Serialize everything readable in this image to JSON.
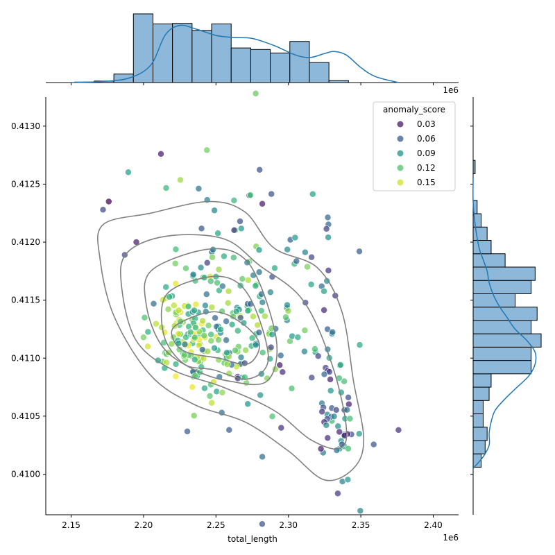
{
  "chart_data": {
    "type": "scatter",
    "title": "",
    "xlabel": "total_length",
    "ylabel": "",
    "x_offset_label": "1e6",
    "x_marginal_offset_label": "1e6",
    "xlim": [
      2.1325,
      2.4175
    ],
    "ylim": [
      0.40965,
      0.41325
    ],
    "x_ticks": [
      2.15,
      2.2,
      2.25,
      2.3,
      2.35,
      2.4
    ],
    "x_tick_labels": [
      "2.15",
      "2.20",
      "2.25",
      "2.30",
      "2.35",
      "2.40"
    ],
    "y_ticks": [
      0.41,
      0.4105,
      0.411,
      0.4115,
      0.412,
      0.4125,
      0.413
    ],
    "y_tick_labels": [
      "0.4100",
      "0.4105",
      "0.4110",
      "0.4115",
      "0.4120",
      "0.4125",
      "0.4130"
    ],
    "grid": false,
    "legend": {
      "title": "anomaly_score",
      "placement": "top-right",
      "entries": [
        {
          "label": "0.03",
          "color": "#46327e"
        },
        {
          "label": "0.06",
          "color": "#277f8e"
        },
        {
          "label": "0.09",
          "color": "#1fa187"
        },
        {
          "label": "0.12",
          "color": "#6ece58"
        },
        {
          "label": "0.15",
          "color": "#e1e22c"
        }
      ]
    },
    "colormap": "viridis",
    "marginal_color": "#1f77b4",
    "kde_contour_color": "#808080",
    "points_outlier": [
      {
        "x": 2.212,
        "y": 0.41276,
        "s": 0.03
      },
      {
        "x": 2.172,
        "y": 0.41228,
        "s": 0.05
      },
      {
        "x": 2.176,
        "y": 0.41235,
        "s": 0.02
      },
      {
        "x": 2.187,
        "y": 0.41189,
        "s": 0.05
      },
      {
        "x": 2.195,
        "y": 0.412,
        "s": 0.03
      },
      {
        "x": 2.349,
        "y": 0.41192,
        "s": 0.06
      },
      {
        "x": 2.376,
        "y": 0.41038,
        "s": 0.04
      },
      {
        "x": 2.282,
        "y": 0.41233,
        "s": 0.03
      },
      {
        "x": 2.316,
        "y": 0.41187,
        "s": 0.05
      },
      {
        "x": 2.282,
        "y": 0.41015,
        "s": 0.07
      },
      {
        "x": 2.294,
        "y": 0.41094,
        "s": 0.03
      },
      {
        "x": 2.295,
        "y": 0.4104,
        "s": 0.04
      },
      {
        "x": 2.33,
        "y": 0.41057,
        "s": 0.06
      },
      {
        "x": 2.265,
        "y": 0.41084,
        "s": 0.04
      },
      {
        "x": 2.296,
        "y": 0.41088,
        "s": 0.04
      },
      {
        "x": 2.323,
        "y": 0.41162,
        "s": 0.07
      },
      {
        "x": 2.254,
        "y": 0.41053,
        "s": 0.07
      },
      {
        "x": 2.207,
        "y": 0.41147,
        "s": 0.07
      }
    ],
    "clusters": [
      {
        "cx": 2.232,
        "cy": 0.4112,
        "sx": 0.012,
        "sy": 0.00022,
        "n": 110,
        "smin": 0.1,
        "smax": 0.16
      },
      {
        "cx": 2.258,
        "cy": 0.41118,
        "sx": 0.02,
        "sy": 0.0003,
        "n": 90,
        "smin": 0.06,
        "smax": 0.15
      },
      {
        "cx": 2.283,
        "cy": 0.41128,
        "sx": 0.018,
        "sy": 0.0004,
        "n": 40,
        "smin": 0.05,
        "smax": 0.14
      },
      {
        "cx": 2.324,
        "cy": 0.41122,
        "sx": 0.008,
        "sy": 0.0006,
        "n": 30,
        "smin": 0.03,
        "smax": 0.11
      },
      {
        "cx": 2.335,
        "cy": 0.4104,
        "sx": 0.009,
        "sy": 0.0003,
        "n": 45,
        "smin": 0.03,
        "smax": 0.12
      },
      {
        "cx": 2.262,
        "cy": 0.41205,
        "sx": 0.022,
        "sy": 0.0006,
        "n": 40,
        "smin": 0.04,
        "smax": 0.14
      }
    ],
    "x_hist": {
      "bin_start": 2.1525,
      "bin_width": 0.0135,
      "counts": [
        1,
        3,
        17,
        137,
        117,
        118,
        104,
        117,
        69,
        66,
        59,
        82,
        40,
        4
      ]
    },
    "x_kde": [
      [
        2.15,
        0
      ],
      [
        2.17,
        2
      ],
      [
        2.19,
        9
      ],
      [
        2.205,
        35
      ],
      [
        2.215,
        95
      ],
      [
        2.225,
        114
      ],
      [
        2.237,
        106
      ],
      [
        2.25,
        94
      ],
      [
        2.262,
        90
      ],
      [
        2.275,
        88
      ],
      [
        2.29,
        74
      ],
      [
        2.305,
        55
      ],
      [
        2.315,
        50
      ],
      [
        2.325,
        58
      ],
      [
        2.332,
        62
      ],
      [
        2.34,
        55
      ],
      [
        2.35,
        30
      ],
      [
        2.36,
        12
      ],
      [
        2.376,
        0
      ]
    ],
    "y_hist": {
      "bin_start": 0.41006,
      "bin_width": 0.000115,
      "counts": [
        4,
        6,
        7,
        5,
        5,
        8,
        9,
        29,
        29,
        34,
        29,
        32,
        21,
        29,
        31,
        16,
        9,
        7,
        4,
        2,
        0,
        0,
        1
      ]
    },
    "y_kde": [
      [
        0.41005,
        0
      ],
      [
        0.41015,
        5
      ],
      [
        0.41025,
        8
      ],
      [
        0.41035,
        8
      ],
      [
        0.41045,
        9
      ],
      [
        0.41055,
        11
      ],
      [
        0.41065,
        16
      ],
      [
        0.41075,
        22
      ],
      [
        0.41085,
        28
      ],
      [
        0.41095,
        31
      ],
      [
        0.41105,
        31
      ],
      [
        0.41115,
        27
      ],
      [
        0.41125,
        21
      ],
      [
        0.41135,
        17
      ],
      [
        0.41145,
        13
      ],
      [
        0.41155,
        10
      ],
      [
        0.41165,
        8
      ],
      [
        0.41175,
        7
      ],
      [
        0.41185,
        5
      ],
      [
        0.41195,
        3
      ],
      [
        0.41215,
        1
      ],
      [
        0.41235,
        0
      ],
      [
        0.41255,
        0
      ]
    ]
  }
}
